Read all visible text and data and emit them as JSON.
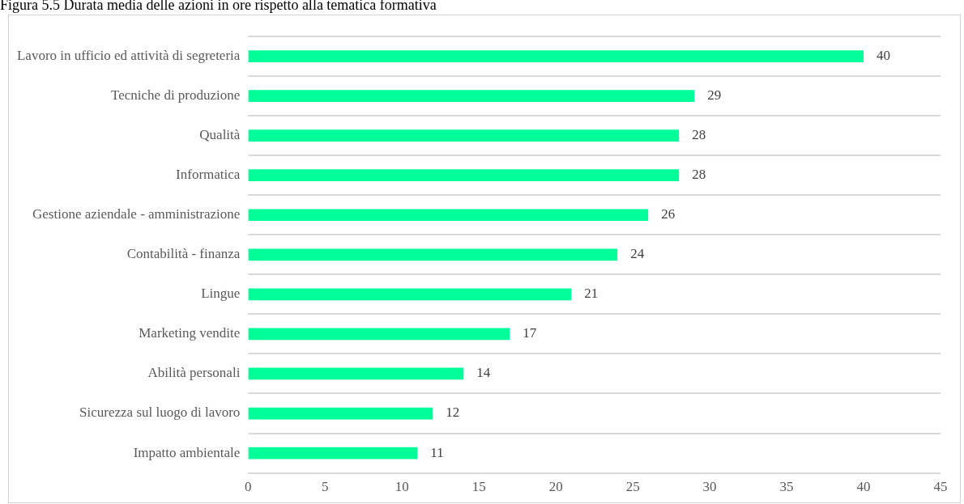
{
  "chart_data": {
    "type": "bar",
    "title": "Figura 5.5 Durata media delle azioni in ore rispetto alla tematica formativa",
    "orientation": "horizontal",
    "categories": [
      "Lavoro in ufficio ed attività di segreteria",
      "Tecniche di produzione",
      "Qualità",
      "Informatica",
      "Gestione aziendale - amministrazione",
      "Contabilità - finanza",
      "Lingue",
      "Marketing vendite",
      "Abilità personali",
      "Sicurezza sul luogo di lavoro",
      "Impatto ambientale"
    ],
    "values": [
      40,
      29,
      28,
      28,
      26,
      24,
      21,
      17,
      14,
      12,
      11
    ],
    "color": "#00ff99",
    "xlim": [
      0,
      45
    ],
    "xticks": [
      0,
      5,
      10,
      15,
      20,
      25,
      30,
      35,
      40,
      45
    ],
    "grid": "y",
    "data_labels": true
  }
}
